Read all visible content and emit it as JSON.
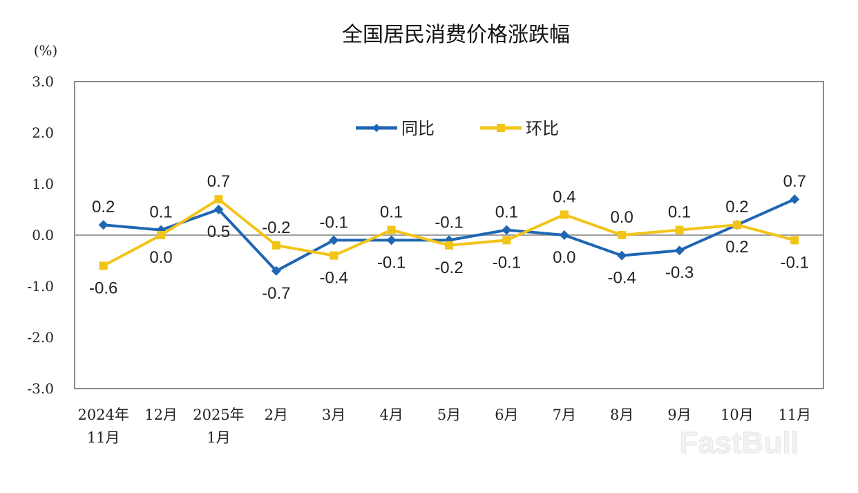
{
  "chart_data": {
    "type": "line",
    "title": "全国居民消费价格涨跌幅",
    "ylabel": "(%)",
    "ylim": [
      -3.0,
      3.0
    ],
    "yticks": [
      "3.0",
      "2.0",
      "1.0",
      "0.0",
      "-1.0",
      "-2.0",
      "-3.0"
    ],
    "ytick_values": [
      3,
      2,
      1,
      0,
      -1,
      -2,
      -3
    ],
    "categories": [
      [
        "2024年",
        "11月"
      ],
      [
        "12月"
      ],
      [
        "2025年",
        "1月"
      ],
      [
        "2月"
      ],
      [
        "3月"
      ],
      [
        "4月"
      ],
      [
        "5月"
      ],
      [
        "6月"
      ],
      [
        "7月"
      ],
      [
        "8月"
      ],
      [
        "9月"
      ],
      [
        "10月"
      ],
      [
        "11月"
      ]
    ],
    "legend_position": "top-center",
    "grid": false,
    "series": [
      {
        "name": "同比",
        "color": "#1f66b3",
        "marker": "diamond",
        "values": [
          0.2,
          0.1,
          0.5,
          -0.7,
          -0.1,
          -0.1,
          -0.1,
          0.1,
          0.0,
          -0.4,
          -0.3,
          0.2,
          0.7
        ],
        "label_pos": [
          "above",
          "above",
          "below",
          "below",
          "above",
          "below",
          "above",
          "above",
          "below",
          "below",
          "below",
          "below",
          "above"
        ]
      },
      {
        "name": "环比",
        "color": "#f2c418",
        "marker": "square",
        "values": [
          -0.6,
          0.0,
          0.7,
          -0.2,
          -0.4,
          0.1,
          -0.2,
          -0.1,
          0.4,
          0.0,
          0.1,
          0.2,
          -0.1
        ],
        "label_pos": [
          "below",
          "below",
          "above",
          "above",
          "below",
          "above",
          "below",
          "below",
          "above",
          "above",
          "above",
          "above",
          "below"
        ]
      }
    ]
  },
  "watermark": "FastBull"
}
